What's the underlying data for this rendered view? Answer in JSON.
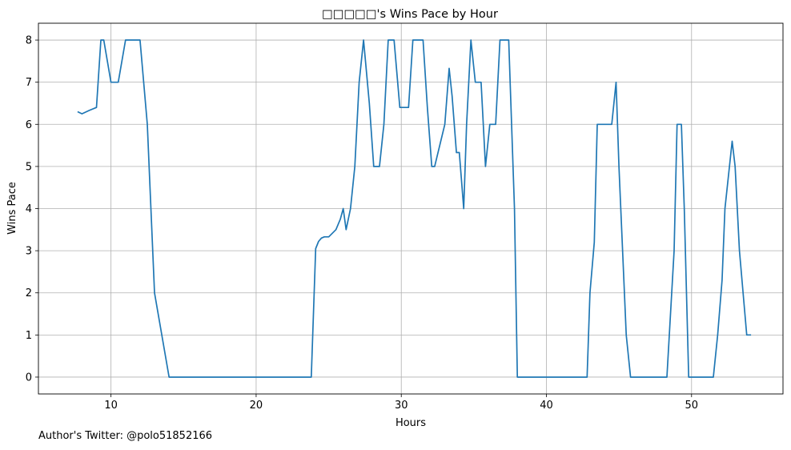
{
  "chart_data": {
    "type": "line",
    "title": "□□□□□'s Wins Pace by Hour",
    "xlabel": "Hours",
    "ylabel": "Wins Pace",
    "xlim": [
      5,
      56.3
    ],
    "ylim": [
      -0.4,
      8.4
    ],
    "xticks": [
      10,
      20,
      30,
      40,
      50
    ],
    "yticks": [
      0,
      1,
      2,
      3,
      4,
      5,
      6,
      7,
      8
    ],
    "grid": true,
    "line_color": "#1f77b4",
    "series": [
      {
        "x": [
          7.7,
          8.0,
          8.5,
          9.0,
          9.3,
          9.5,
          10.0,
          10.3,
          10.5,
          11.0,
          11.5,
          12.0,
          12.5,
          13.0,
          14.0,
          23.8,
          24.1,
          24.3,
          24.5,
          24.7,
          25.0,
          25.5,
          25.8,
          26.0,
          26.2,
          26.5,
          26.8,
          27.1,
          27.4,
          27.8,
          28.1,
          28.5,
          28.8,
          29.1,
          29.5,
          29.9,
          30.2,
          30.5,
          30.8,
          31.1,
          31.5,
          31.8,
          32.1,
          32.3,
          33.0,
          33.3,
          33.5,
          33.8,
          34.0,
          34.3,
          34.5,
          34.8,
          35.1,
          35.5,
          35.8,
          36.1,
          36.5,
          36.8,
          37.1,
          37.4,
          37.8,
          38.0,
          38.5,
          39.0,
          42.8,
          43.0,
          43.3,
          43.5,
          44.0,
          44.5,
          44.8,
          45.0,
          45.5,
          45.8,
          46.0,
          48.3,
          48.8,
          49.0,
          49.3,
          49.5,
          49.8,
          50.0,
          50.3,
          50.8,
          51.5,
          51.8,
          52.1,
          52.3,
          52.8,
          53.0,
          53.3,
          53.8,
          54.1
        ],
        "y": [
          6.3,
          6.25,
          6.33,
          6.4,
          8.0,
          8.0,
          7.0,
          7.0,
          7.0,
          8.0,
          8.0,
          8.0,
          6.0,
          2.0,
          0.0,
          0.0,
          3.05,
          3.22,
          3.3,
          3.33,
          3.33,
          3.5,
          3.75,
          4.0,
          3.5,
          4.0,
          5.0,
          7.0,
          8.0,
          6.5,
          5.0,
          5.0,
          6.0,
          8.0,
          8.0,
          6.4,
          6.4,
          6.4,
          8.0,
          8.0,
          8.0,
          6.4,
          5.0,
          5.0,
          6.0,
          7.33,
          6.67,
          5.33,
          5.33,
          4.0,
          6.0,
          8.0,
          7.0,
          7.0,
          5.0,
          6.0,
          6.0,
          8.0,
          8.0,
          8.0,
          4.0,
          0.0,
          0.0,
          0.0,
          0.0,
          2.0,
          3.2,
          6.0,
          6.0,
          6.0,
          7.0,
          5.0,
          1.0,
          0.0,
          0.0,
          0.0,
          3.0,
          6.0,
          6.0,
          4.0,
          0.0,
          0.0,
          0.0,
          0.0,
          0.0,
          1.0,
          2.3,
          4.0,
          5.6,
          5.0,
          3.0,
          1.0,
          1.0
        ]
      }
    ]
  },
  "footer": {
    "text": "Author's Twitter: @polo51852166"
  }
}
